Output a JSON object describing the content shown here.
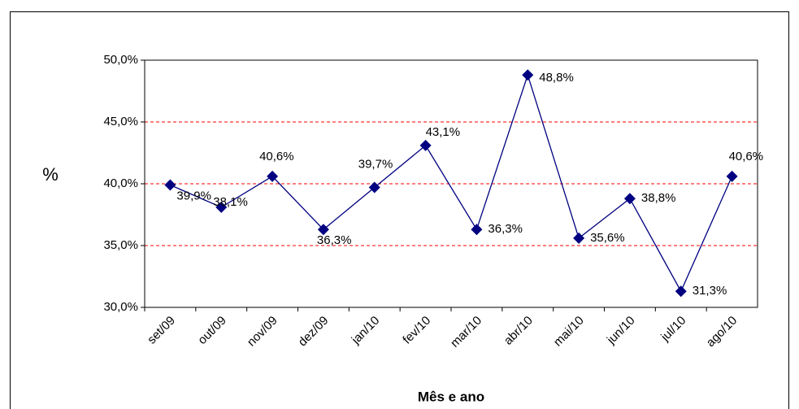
{
  "chart_data": {
    "type": "line",
    "y_label": "%",
    "x_label": "Mês e ano",
    "categories": [
      "set/09",
      "out/09",
      "nov/09",
      "dez/09",
      "jan/10",
      "fev/10",
      "mar/10",
      "abr/10",
      "mai/10",
      "jun/10",
      "jul/10",
      "ago/10"
    ],
    "series": [
      {
        "name": "%",
        "color": "#000080",
        "values": [
          39.9,
          38.1,
          40.6,
          36.3,
          39.7,
          43.1,
          36.3,
          48.8,
          35.6,
          38.8,
          31.3,
          40.6
        ],
        "value_labels": [
          "39,9%",
          "38,1%",
          "40,6%",
          "36,3%",
          "39,7%",
          "43,1%",
          "36,3%",
          "48,8%",
          "35,6%",
          "38,8%",
          "31,3%",
          "40,6%"
        ]
      }
    ],
    "ylim": [
      30,
      50
    ],
    "yticks": [
      {
        "value": 30,
        "label": "30,0%"
      },
      {
        "value": 35,
        "label": "35,0%"
      },
      {
        "value": 40,
        "label": "40,0%"
      },
      {
        "value": 45,
        "label": "45,0%"
      },
      {
        "value": 50,
        "label": "50,0%"
      }
    ],
    "grid": true,
    "grid_color": "#ff0000"
  }
}
